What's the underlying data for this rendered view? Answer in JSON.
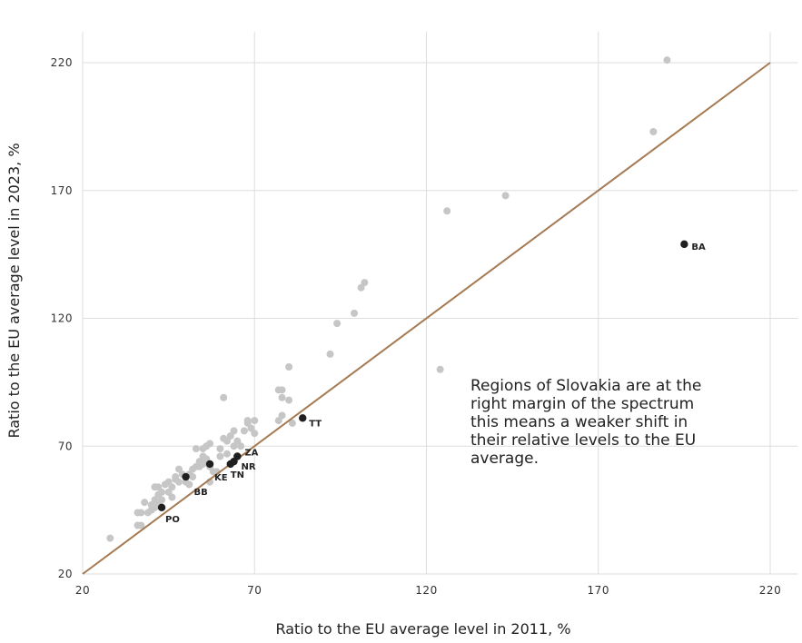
{
  "chart_data": {
    "type": "scatter",
    "xlabel": "Ratio to the EU average level in 2011, %",
    "ylabel": "Ratio to the EU average level in 2023, %",
    "xlim": [
      20,
      228
    ],
    "ylim": [
      20,
      232
    ],
    "x_ticks": [
      "20",
      "70",
      "120",
      "170",
      "220"
    ],
    "y_ticks": [
      "20",
      "70",
      "120",
      "170",
      "220"
    ],
    "grid": true,
    "reference_line": {
      "from": [
        20,
        20
      ],
      "to": [
        220,
        220
      ],
      "color": "#a57a52"
    },
    "colors": {
      "other": "#c6c6c6",
      "highlight": "#1f1f1f",
      "line": "#a57a52"
    },
    "annotation": [
      "Regions of Slovakia are at the",
      "right margin of the spectrum",
      "this means a weaker shift in",
      "their relative levels to the EU",
      "average."
    ],
    "highlighted": [
      {
        "label": "BA",
        "x": 195,
        "y": 149
      },
      {
        "label": "TT",
        "x": 84,
        "y": 81
      },
      {
        "label": "ZA",
        "x": 65,
        "y": 66
      },
      {
        "label": "NR",
        "x": 64,
        "y": 64
      },
      {
        "label": "TN",
        "x": 63,
        "y": 63
      },
      {
        "label": "KE",
        "x": 57,
        "y": 63
      },
      {
        "label": "BB",
        "x": 50,
        "y": 58
      },
      {
        "label": "PO",
        "x": 43,
        "y": 46
      }
    ],
    "other_points": [
      [
        28,
        34
      ],
      [
        36,
        39
      ],
      [
        37,
        39
      ],
      [
        36,
        44
      ],
      [
        37,
        44
      ],
      [
        38,
        48
      ],
      [
        39,
        44
      ],
      [
        40,
        45
      ],
      [
        40,
        47
      ],
      [
        41,
        46
      ],
      [
        41,
        49
      ],
      [
        42,
        47
      ],
      [
        42,
        51
      ],
      [
        43,
        49
      ],
      [
        43,
        52
      ],
      [
        41,
        54
      ],
      [
        42,
        54
      ],
      [
        44,
        55
      ],
      [
        45,
        56
      ],
      [
        45,
        52
      ],
      [
        46,
        54
      ],
      [
        46,
        50
      ],
      [
        47,
        57
      ],
      [
        47,
        58
      ],
      [
        48,
        56
      ],
      [
        48,
        61
      ],
      [
        49,
        59
      ],
      [
        50,
        58
      ],
      [
        50,
        56
      ],
      [
        51,
        55
      ],
      [
        51,
        59
      ],
      [
        52,
        58
      ],
      [
        52,
        61
      ],
      [
        53,
        69
      ],
      [
        53,
        62
      ],
      [
        54,
        62
      ],
      [
        54,
        64
      ],
      [
        55,
        63
      ],
      [
        55,
        66
      ],
      [
        55,
        69
      ],
      [
        56,
        65
      ],
      [
        56,
        70
      ],
      [
        57,
        71
      ],
      [
        57,
        62
      ],
      [
        57,
        56
      ],
      [
        58,
        60
      ],
      [
        59,
        60
      ],
      [
        60,
        66
      ],
      [
        60,
        69
      ],
      [
        61,
        89
      ],
      [
        61,
        73
      ],
      [
        62,
        67
      ],
      [
        62,
        72
      ],
      [
        63,
        74
      ],
      [
        64,
        76
      ],
      [
        64,
        70
      ],
      [
        65,
        72
      ],
      [
        66,
        70
      ],
      [
        67,
        76
      ],
      [
        68,
        79
      ],
      [
        68,
        80
      ],
      [
        69,
        77
      ],
      [
        70,
        75
      ],
      [
        70,
        80
      ],
      [
        77,
        92
      ],
      [
        77,
        80
      ],
      [
        78,
        82
      ],
      [
        78,
        89
      ],
      [
        78,
        92
      ],
      [
        80,
        88
      ],
      [
        80,
        101
      ],
      [
        81,
        79
      ],
      [
        92,
        106
      ],
      [
        94,
        118
      ],
      [
        99,
        122
      ],
      [
        101,
        132
      ],
      [
        102,
        134
      ],
      [
        124,
        100
      ],
      [
        126,
        162
      ],
      [
        143,
        168
      ],
      [
        186,
        193
      ],
      [
        190,
        221
      ]
    ]
  }
}
